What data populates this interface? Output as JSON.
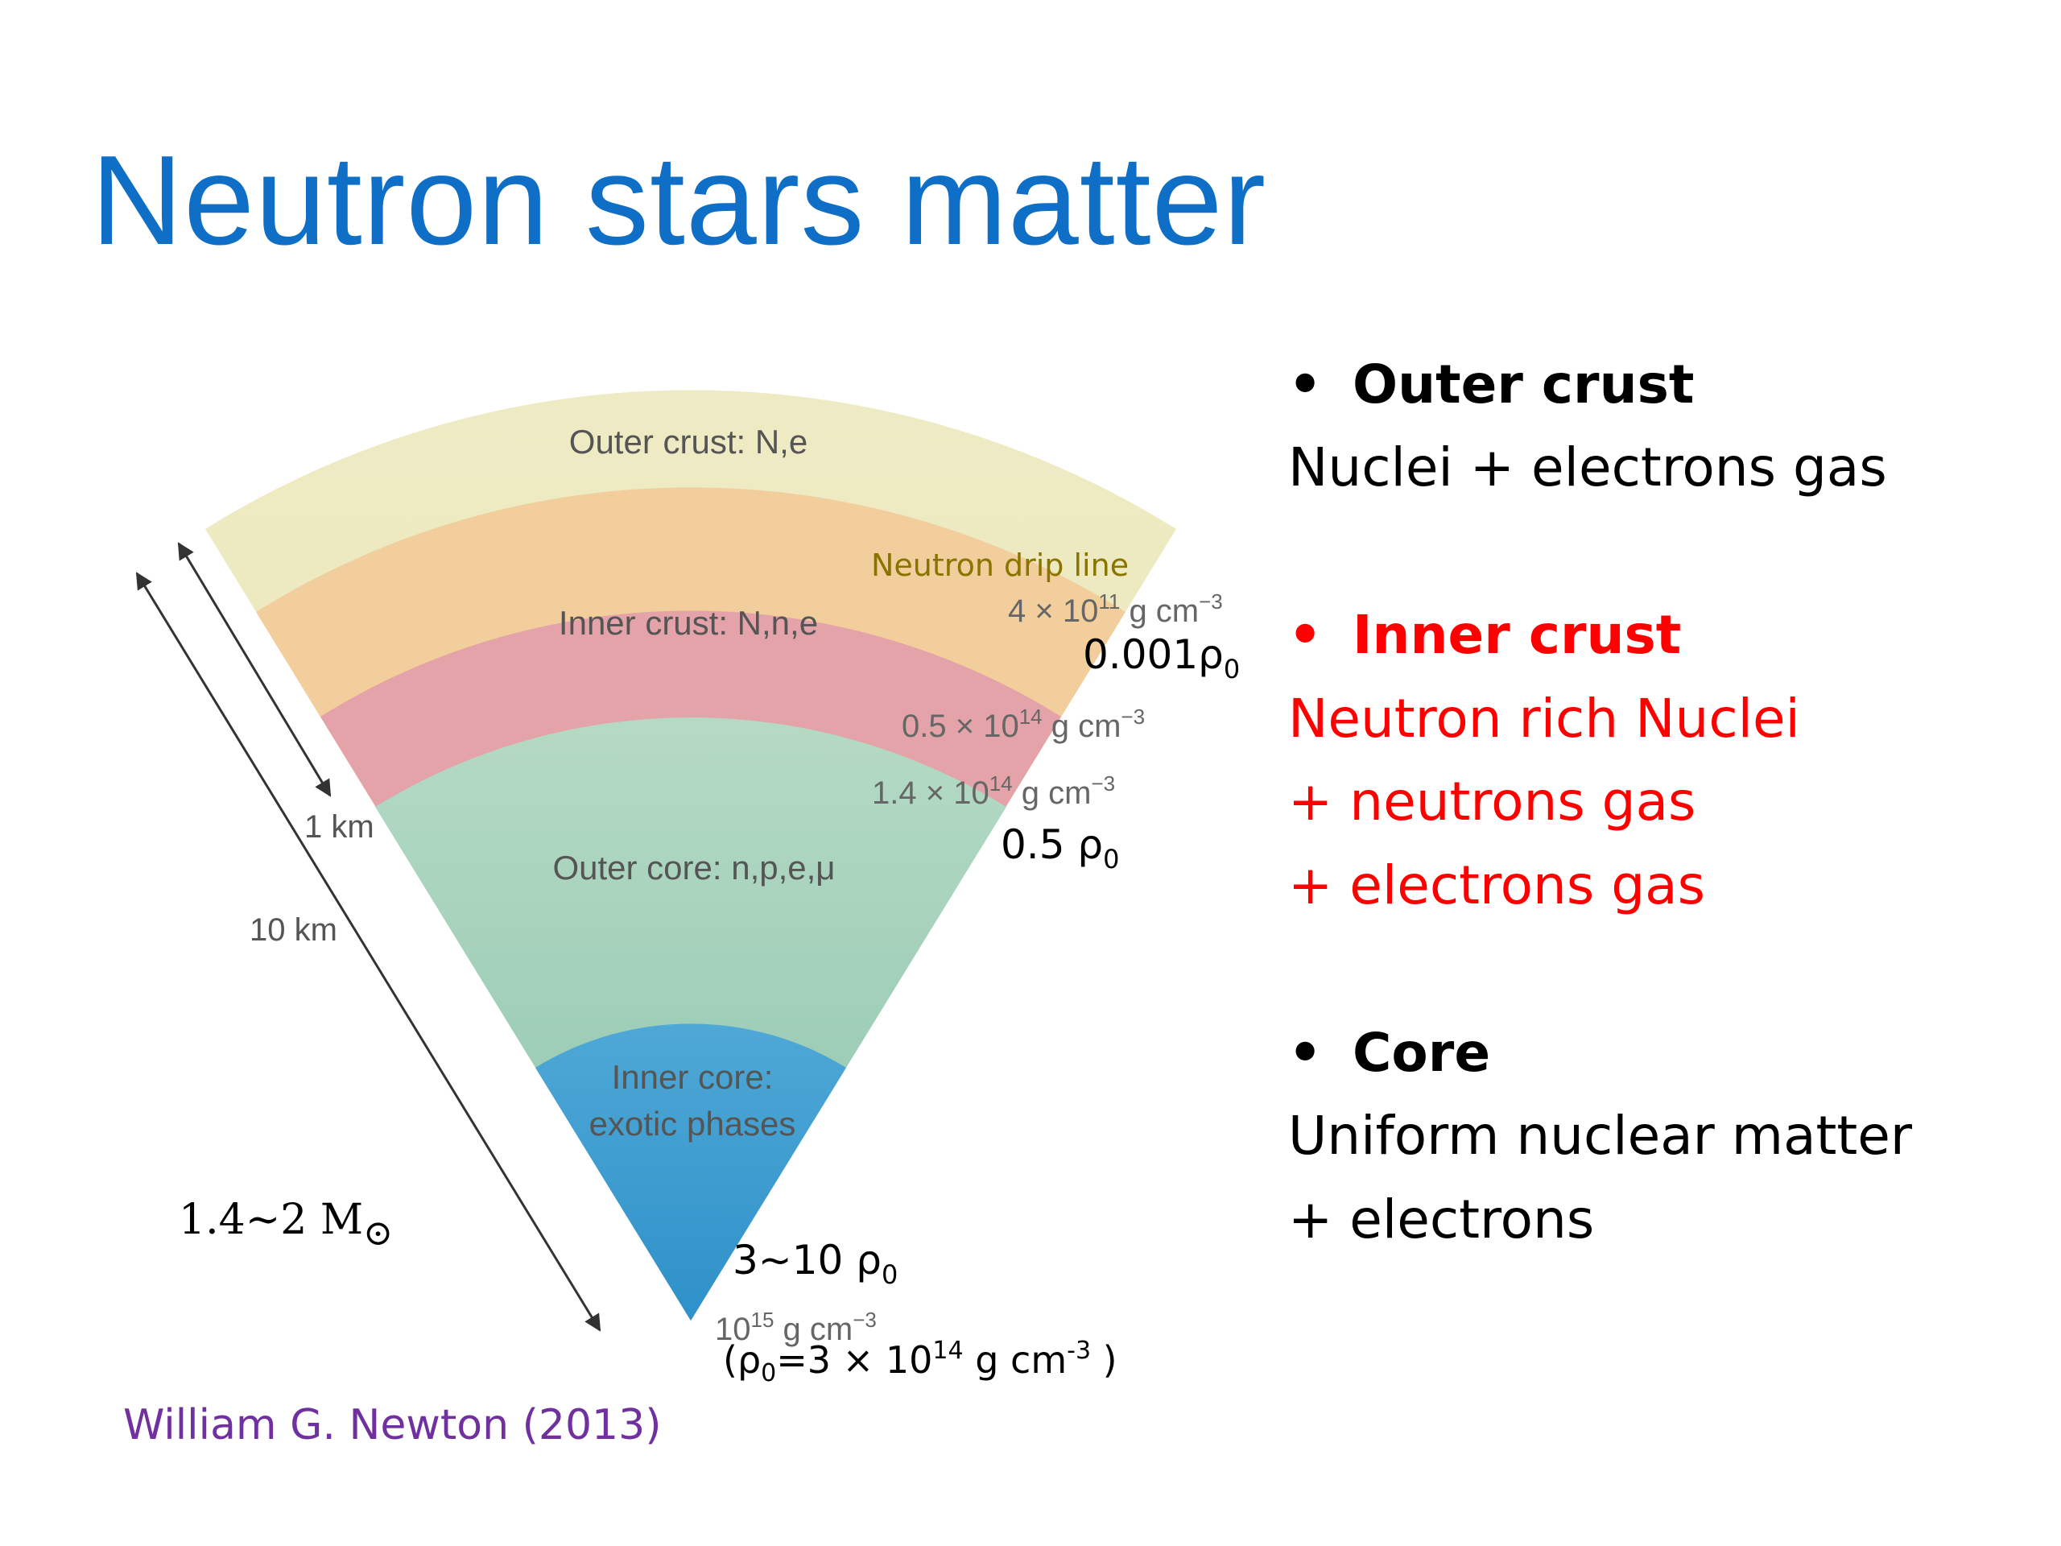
{
  "slide": {
    "title": "Neutron stars matter"
  },
  "diagram": {
    "layers": {
      "outer_crust": "Outer crust: N,e",
      "inner_crust": "Inner crust: N,n,e",
      "outer_core": "Outer core: n,p,e,μ",
      "inner_core_line1": "Inner core:",
      "inner_core_line2": "exotic phases"
    },
    "drip_line": "Neutron drip line",
    "densities": {
      "d1": "4 × 10",
      "d1_exp": "11",
      "d1_unit": " g cm",
      "d1_unit_exp": "−3",
      "d2": "0.5 × 10",
      "d2_exp": "14",
      "d2_unit": " g cm",
      "d2_unit_exp": "−3",
      "d3": "1.4 × 10",
      "d3_exp": "14",
      "d3_unit": " g cm",
      "d3_unit_exp": "−3",
      "d4": "10",
      "d4_exp": "15",
      "d4_unit": " g cm",
      "d4_unit_exp": "−3"
    },
    "rho_labels": {
      "r1": "0.001ρ",
      "r1_sub": "0",
      "r2": "0.5 ρ",
      "r2_sub": "0",
      "r3": "3~10 ρ",
      "r3_sub": "0"
    },
    "rho0_def": {
      "open": "(ρ",
      "sub": "0",
      "mid": "=3 × 10",
      "exp": "14",
      "unit": "   g cm",
      "unit_exp": "-3",
      "close": " )"
    },
    "scale": {
      "km1": "1 km",
      "km10": "10 km"
    },
    "mass": {
      "text": "1.4~2 M",
      "symbol": "⊙"
    }
  },
  "bullets": [
    {
      "marker": "•",
      "heading": "Outer crust",
      "lines": [
        " Nuclei + electrons gas"
      ],
      "color": "#000000"
    },
    {
      "marker": "•",
      "heading": "Inner crust",
      "lines": [
        "Neutron rich Nuclei",
        "+ neutrons gas",
        "+ electrons gas"
      ],
      "color": "#FF0000"
    },
    {
      "marker": "•",
      "heading": "Core",
      "lines": [
        "Uniform nuclear matter",
        "+ electrons"
      ],
      "color": "#000000"
    }
  ],
  "citation": "William G. Newton (2013)",
  "colors": {
    "title": "#0F6FC6",
    "outer_crust": "#EDE9BE",
    "inner_crust": "#F2CE9C",
    "drip_band": "#E3A3A8",
    "outer_core": "#A6D2BE",
    "inner_core": "#3E9FD0",
    "inner_crust_bullet": "#FF0000",
    "citation": "#7030A0"
  }
}
